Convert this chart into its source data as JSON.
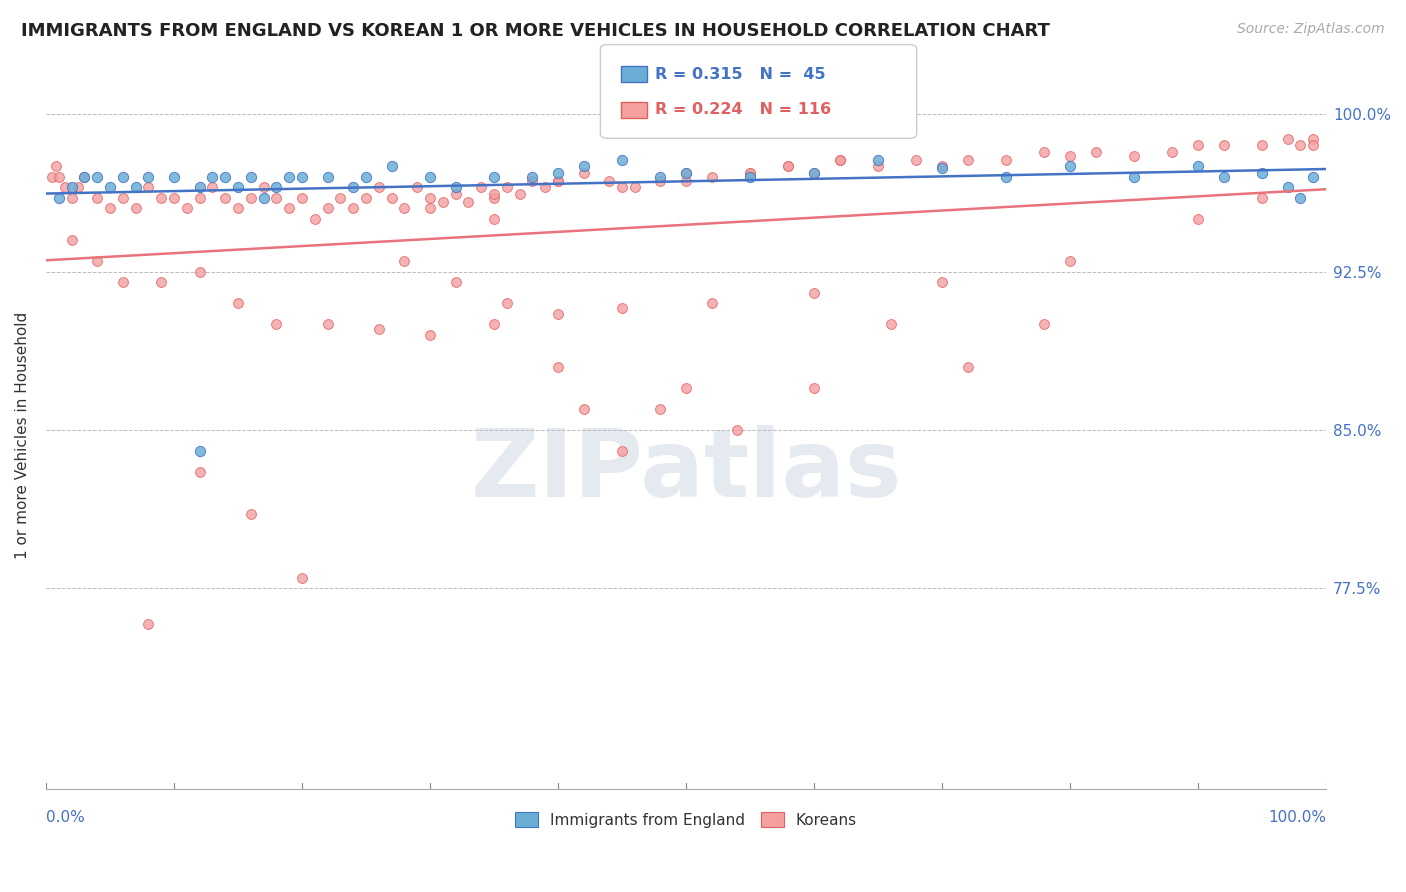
{
  "title": "IMMIGRANTS FROM ENGLAND VS KOREAN 1 OR MORE VEHICLES IN HOUSEHOLD CORRELATION CHART",
  "source": "Source: ZipAtlas.com",
  "ylabel": "1 or more Vehicles in Household",
  "yticks": [
    0.7,
    0.725,
    0.75,
    0.775,
    0.8,
    0.825,
    0.85,
    0.875,
    0.9,
    0.925,
    0.95,
    0.975,
    1.0
  ],
  "ytick_labels": [
    "",
    "",
    "",
    "77.5%",
    "",
    "",
    "85.0%",
    "",
    "",
    "92.5%",
    "",
    "",
    "100.0%"
  ],
  "ylim": [
    0.68,
    1.015
  ],
  "xlim": [
    0.0,
    1.0
  ],
  "R_england": 0.315,
  "N_england": 45,
  "R_korean": 0.224,
  "N_korean": 116,
  "color_england": "#6aaed6",
  "color_korean": "#f4a0a0",
  "trendline_england": "#4472c4",
  "trendline_korean": "#e8737a",
  "watermark": "ZIPatlas",
  "england_x": [
    0.01,
    0.02,
    0.03,
    0.04,
    0.05,
    0.06,
    0.07,
    0.08,
    0.1,
    0.12,
    0.13,
    0.14,
    0.15,
    0.16,
    0.17,
    0.18,
    0.19,
    0.2,
    0.22,
    0.24,
    0.25,
    0.27,
    0.3,
    0.32,
    0.35,
    0.38,
    0.4,
    0.42,
    0.45,
    0.48,
    0.5,
    0.55,
    0.6,
    0.65,
    0.7,
    0.75,
    0.8,
    0.85,
    0.9,
    0.92,
    0.95,
    0.97,
    0.98,
    0.99,
    0.12
  ],
  "england_y": [
    0.96,
    0.965,
    0.97,
    0.97,
    0.965,
    0.97,
    0.965,
    0.97,
    0.97,
    0.965,
    0.97,
    0.97,
    0.965,
    0.97,
    0.96,
    0.965,
    0.97,
    0.97,
    0.97,
    0.965,
    0.97,
    0.975,
    0.97,
    0.965,
    0.97,
    0.97,
    0.972,
    0.975,
    0.978,
    0.97,
    0.972,
    0.97,
    0.972,
    0.978,
    0.974,
    0.97,
    0.975,
    0.97,
    0.975,
    0.97,
    0.972,
    0.965,
    0.96,
    0.97,
    0.84
  ],
  "korean_x": [
    0.005,
    0.008,
    0.01,
    0.015,
    0.02,
    0.025,
    0.03,
    0.04,
    0.05,
    0.06,
    0.07,
    0.08,
    0.09,
    0.1,
    0.11,
    0.12,
    0.13,
    0.14,
    0.15,
    0.16,
    0.17,
    0.18,
    0.19,
    0.2,
    0.21,
    0.22,
    0.23,
    0.24,
    0.25,
    0.26,
    0.27,
    0.28,
    0.29,
    0.3,
    0.31,
    0.32,
    0.33,
    0.34,
    0.35,
    0.36,
    0.37,
    0.38,
    0.39,
    0.4,
    0.42,
    0.44,
    0.46,
    0.48,
    0.5,
    0.52,
    0.55,
    0.58,
    0.6,
    0.62,
    0.65,
    0.68,
    0.7,
    0.72,
    0.75,
    0.78,
    0.8,
    0.82,
    0.85,
    0.88,
    0.9,
    0.92,
    0.95,
    0.97,
    0.98,
    0.99,
    0.3,
    0.35,
    0.4,
    0.45,
    0.5,
    0.55,
    0.58,
    0.62,
    0.35,
    0.4,
    0.45,
    0.5,
    0.28,
    0.32,
    0.36,
    0.42,
    0.48,
    0.54,
    0.6,
    0.66,
    0.72,
    0.78,
    0.02,
    0.04,
    0.06,
    0.09,
    0.12,
    0.15,
    0.18,
    0.22,
    0.26,
    0.3,
    0.35,
    0.4,
    0.45,
    0.52,
    0.6,
    0.7,
    0.8,
    0.9,
    0.95,
    0.99,
    0.08,
    0.12,
    0.16,
    0.2
  ],
  "korean_y": [
    0.97,
    0.975,
    0.97,
    0.965,
    0.96,
    0.965,
    0.97,
    0.96,
    0.955,
    0.96,
    0.955,
    0.965,
    0.96,
    0.96,
    0.955,
    0.96,
    0.965,
    0.96,
    0.955,
    0.96,
    0.965,
    0.96,
    0.955,
    0.96,
    0.95,
    0.955,
    0.96,
    0.955,
    0.96,
    0.965,
    0.96,
    0.955,
    0.965,
    0.96,
    0.958,
    0.962,
    0.958,
    0.965,
    0.96,
    0.965,
    0.962,
    0.968,
    0.965,
    0.968,
    0.972,
    0.968,
    0.965,
    0.968,
    0.972,
    0.97,
    0.972,
    0.975,
    0.972,
    0.978,
    0.975,
    0.978,
    0.975,
    0.978,
    0.978,
    0.982,
    0.98,
    0.982,
    0.98,
    0.982,
    0.985,
    0.985,
    0.985,
    0.988,
    0.985,
    0.988,
    0.955,
    0.962,
    0.968,
    0.965,
    0.968,
    0.972,
    0.975,
    0.978,
    0.95,
    0.88,
    0.84,
    0.87,
    0.93,
    0.92,
    0.91,
    0.86,
    0.86,
    0.85,
    0.87,
    0.9,
    0.88,
    0.9,
    0.94,
    0.93,
    0.92,
    0.92,
    0.925,
    0.91,
    0.9,
    0.9,
    0.898,
    0.895,
    0.9,
    0.905,
    0.908,
    0.91,
    0.915,
    0.92,
    0.93,
    0.95,
    0.96,
    0.985,
    0.758,
    0.83,
    0.81,
    0.78
  ]
}
